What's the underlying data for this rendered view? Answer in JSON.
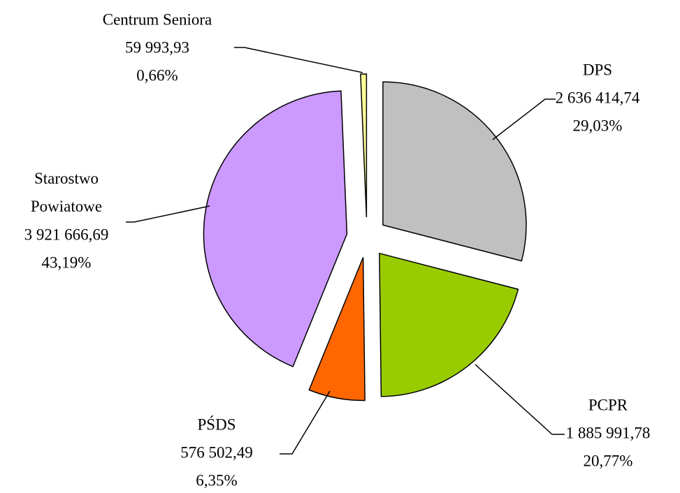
{
  "chart_data": {
    "type": "pie",
    "categories": [
      "DPS",
      "PCPR",
      "PŚDS",
      "Starostwo Powiatowe",
      "Centrum Seniora"
    ],
    "values": [
      2636414.74,
      1885991.78,
      576502.49,
      3921666.69,
      59993.93
    ],
    "value_labels": [
      "2 636 414,74",
      "1 885 991,78",
      "576 502,49",
      "3 921 666,69",
      "59 993,93"
    ],
    "percents": [
      29.03,
      20.77,
      6.35,
      43.19,
      0.66
    ],
    "percent_labels": [
      "29,03%",
      "20,77%",
      "6,35%",
      "43,19%",
      "0,66%"
    ],
    "colors": [
      "#c0c0c0",
      "#99cc00",
      "#ff6600",
      "#cc99ff",
      "#ffff99"
    ]
  }
}
